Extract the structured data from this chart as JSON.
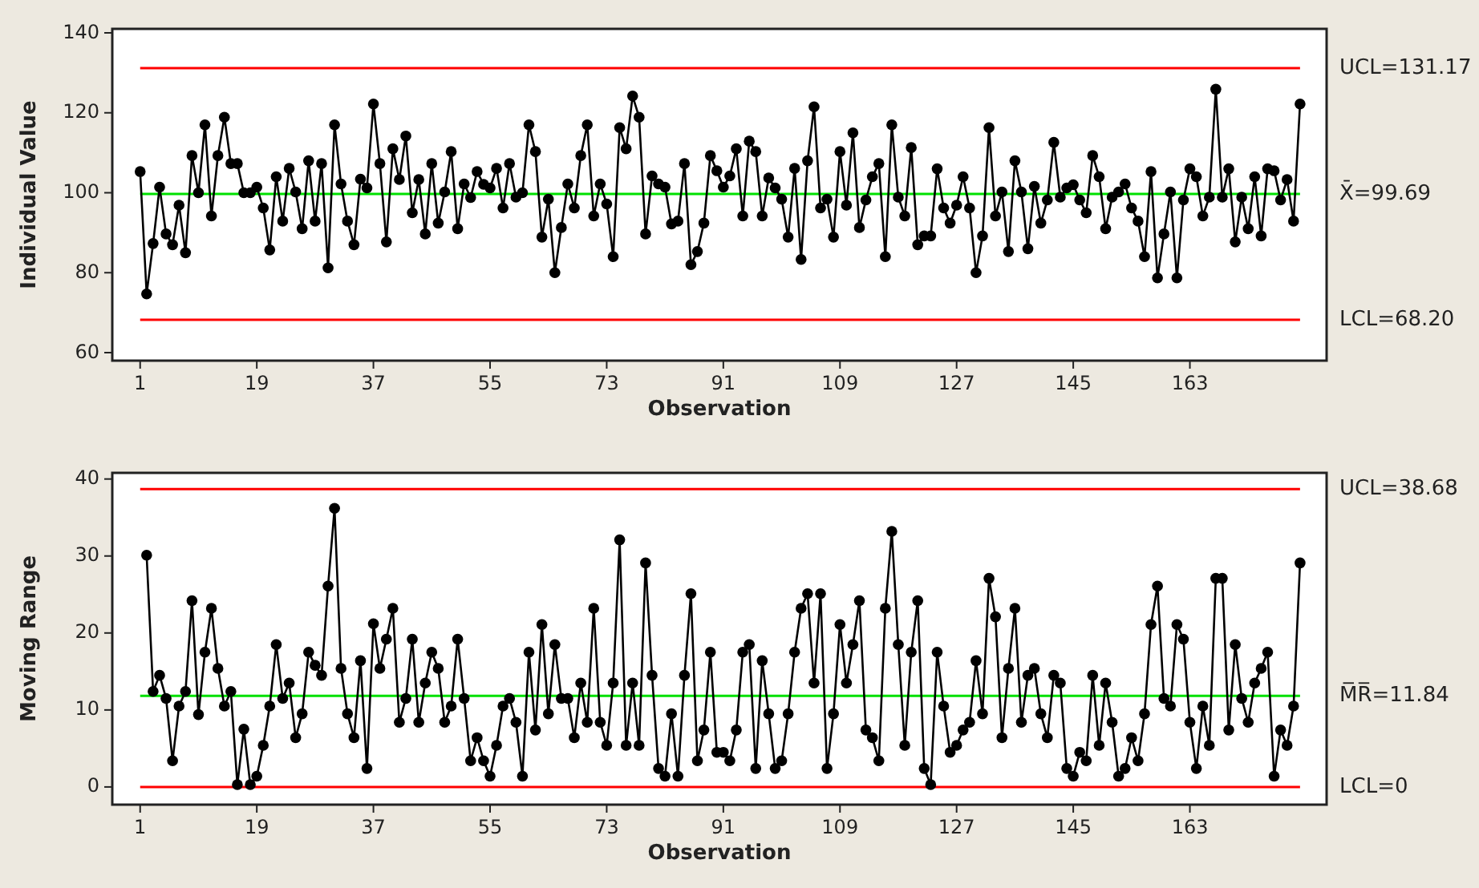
{
  "chart_data": [
    {
      "type": "line",
      "xlabel": "Observation",
      "ylabel": "Individual Value",
      "marker": "circle",
      "xlim": [
        -3.3,
        184.1
      ],
      "xticks": [
        1,
        19,
        37,
        55,
        73,
        91,
        109,
        127,
        145,
        163
      ],
      "ylim": [
        58,
        141
      ],
      "yticks": [
        60,
        80,
        100,
        120,
        140
      ],
      "x": [
        1,
        2,
        3,
        4,
        5,
        6,
        7,
        8,
        9,
        10,
        11,
        12,
        13,
        14,
        15,
        16,
        17,
        18,
        19,
        20,
        21,
        22,
        23,
        24,
        25,
        26,
        27,
        28,
        29,
        30,
        31,
        32,
        33,
        34,
        35,
        36,
        37,
        38,
        39,
        40,
        41,
        42,
        43,
        44,
        45,
        46,
        47,
        48,
        49,
        50,
        51,
        52,
        53,
        54,
        55,
        56,
        57,
        58,
        59,
        60,
        61,
        62,
        63,
        64,
        65,
        66,
        67,
        68,
        69,
        70,
        71,
        72,
        73,
        74,
        75,
        76,
        77,
        78,
        79,
        80,
        81,
        82,
        83,
        84,
        85,
        86,
        87,
        88,
        89,
        90,
        91,
        92,
        93,
        94,
        95,
        96,
        97,
        98,
        99,
        100,
        101,
        102,
        103,
        104,
        105,
        106,
        107,
        108,
        109,
        110,
        111,
        112,
        113,
        114,
        115,
        116,
        117,
        118,
        119,
        120,
        121,
        122,
        123,
        124,
        125,
        126,
        127,
        128,
        129,
        130,
        131,
        132,
        133,
        134,
        135,
        136,
        137,
        138,
        139,
        140,
        141,
        142,
        143,
        144,
        145,
        146,
        147,
        148,
        149,
        150,
        151,
        152,
        153,
        154,
        155,
        156,
        157,
        158,
        159,
        160,
        161,
        162,
        163,
        164,
        165,
        166,
        167,
        168,
        169,
        170,
        171,
        172,
        173,
        174,
        175,
        176,
        177,
        178,
        179,
        180
      ],
      "series": [
        {
          "color": "#000000",
          "values": [
            105.3,
            74.7,
            87.3,
            101.4,
            89.7,
            87.0,
            96.9,
            85.0,
            109.3,
            100.0,
            117.0,
            94.2,
            109.3,
            118.9,
            107.3,
            107.3,
            100.0,
            100.0,
            101.4,
            96.2,
            85.7,
            104.0,
            92.9,
            106.1,
            100.2,
            91.0,
            108.0,
            92.9,
            107.3,
            81.2,
            117.0,
            102.2,
            92.9,
            87.0,
            103.4,
            101.2,
            122.2,
            107.3,
            87.7,
            111.0,
            103.3,
            114.2,
            95.0,
            103.3,
            89.7,
            107.3,
            92.4,
            100.2,
            110.3,
            91.0,
            102.2,
            98.8,
            105.3,
            102.1,
            101.2,
            106.1,
            96.2,
            107.3,
            98.9,
            100.0,
            117.0,
            110.3,
            88.9,
            98.4,
            80.0,
            91.3,
            102.2,
            96.2,
            109.3,
            117.0,
            94.2,
            102.2,
            97.2,
            84.0,
            116.3,
            111.0,
            124.2,
            118.9,
            89.7,
            104.2,
            102.2,
            101.4,
            92.2,
            92.9,
            107.3,
            82.0,
            85.3,
            92.4,
            109.3,
            105.5,
            101.4,
            104.2,
            111.0,
            94.2,
            112.9,
            110.3,
            94.2,
            103.7,
            101.2,
            98.4,
            88.9,
            106.1,
            83.3,
            108.0,
            121.5,
            96.2,
            98.4,
            88.9,
            110.3,
            96.9,
            115.0,
            91.3,
            98.2,
            104.0,
            107.3,
            84.0,
            117.0,
            98.9,
            94.2,
            111.3,
            87.0,
            89.2,
            89.2,
            106.0,
            96.2,
            92.4,
            96.9,
            104.0,
            96.2,
            80.0,
            89.2,
            116.3,
            94.2,
            100.2,
            85.3,
            108.0,
            100.2,
            86.0,
            101.6,
            92.4,
            98.2,
            112.6,
            98.9,
            101.2,
            102.0,
            98.2,
            95.0,
            109.3,
            104.0,
            91.0,
            98.9,
            100.2,
            102.2,
            96.2,
            92.9,
            84.0,
            105.3,
            78.7,
            89.7,
            100.2,
            78.7,
            98.2,
            106.0,
            104.0,
            94.2,
            98.9,
            125.9,
            98.9,
            106.0,
            87.7,
            98.9,
            91.0,
            104.0,
            89.2,
            106.0,
            105.5,
            98.2,
            103.3,
            92.9,
            122.2
          ]
        }
      ],
      "ref_lines": [
        {
          "axis": "y",
          "value": 131.17,
          "label": "UCL=131.17",
          "color": "#ff0000"
        },
        {
          "axis": "y",
          "value": 99.69,
          "label": "X̄=99.69",
          "color": "#00e000"
        },
        {
          "axis": "y",
          "value": 68.2,
          "label": "LCL=68.20",
          "color": "#ff0000"
        }
      ]
    },
    {
      "type": "line",
      "xlabel": "Observation",
      "ylabel": "Moving Range",
      "marker": "circle",
      "xlim": [
        -3.3,
        184.1
      ],
      "xticks": [
        1,
        19,
        37,
        55,
        73,
        91,
        109,
        127,
        145,
        163
      ],
      "ylim": [
        -2.3,
        40.8
      ],
      "yticks": [
        0,
        10,
        20,
        30,
        40
      ],
      "series": [
        {
          "color": "#000000",
          "x": [
            2,
            3,
            4,
            5,
            6,
            7,
            8,
            9,
            10,
            11,
            12,
            13,
            14,
            15,
            16,
            17,
            18,
            19,
            20,
            21,
            22,
            23,
            24,
            25,
            26,
            27,
            28,
            29,
            30,
            31,
            32,
            33,
            34,
            35,
            36,
            37,
            38,
            39,
            40,
            41,
            42,
            43,
            44,
            45,
            46,
            47,
            48,
            49,
            50,
            51,
            52,
            53,
            54,
            55,
            56,
            57,
            58,
            59,
            60,
            61,
            62,
            63,
            64,
            65,
            66,
            67,
            68,
            69,
            70,
            71,
            72,
            73,
            74,
            75,
            76,
            77,
            78,
            79,
            80,
            81,
            82,
            83,
            84,
            85,
            86,
            87,
            88,
            89,
            90,
            91,
            92,
            93,
            94,
            95,
            96,
            97,
            98,
            99,
            100,
            101,
            102,
            103,
            104,
            105,
            106,
            107,
            108,
            109,
            110,
            111,
            112,
            113,
            114,
            115,
            116,
            117,
            118,
            119,
            120,
            121,
            122,
            123,
            124,
            125,
            126,
            127,
            128,
            129,
            130,
            131,
            132,
            133,
            134,
            135,
            136,
            137,
            138,
            139,
            140,
            141,
            142,
            143,
            144,
            145,
            146,
            147,
            148,
            149,
            150,
            151,
            152,
            153,
            154,
            155,
            156,
            157,
            158,
            159,
            160,
            161,
            162,
            163,
            164,
            165,
            166,
            167,
            168,
            169,
            170,
            171,
            172,
            173,
            174,
            175,
            176,
            177,
            178,
            179,
            180
          ],
          "values": [
            30.1,
            12.4,
            14.5,
            11.5,
            3.4,
            10.5,
            12.4,
            24.2,
            9.4,
            17.5,
            23.2,
            15.4,
            10.5,
            12.4,
            0.3,
            7.5,
            0.3,
            1.4,
            5.4,
            10.5,
            18.5,
            11.5,
            13.5,
            6.4,
            9.5,
            17.5,
            15.8,
            14.5,
            26.1,
            36.2,
            15.4,
            9.5,
            6.4,
            16.4,
            2.4,
            21.2,
            15.4,
            19.2,
            23.2,
            8.4,
            11.5,
            19.2,
            8.4,
            13.5,
            17.5,
            15.4,
            8.4,
            10.5,
            19.2,
            11.5,
            3.4,
            6.4,
            3.4,
            1.4,
            5.4,
            10.5,
            11.5,
            8.4,
            1.4,
            17.5,
            7.4,
            21.1,
            9.5,
            18.5,
            11.5,
            11.5,
            6.4,
            13.5,
            8.4,
            23.2,
            8.4,
            5.4,
            13.5,
            32.1,
            5.4,
            13.5,
            5.4,
            29.1,
            14.5,
            2.4,
            1.4,
            9.5,
            1.4,
            14.5,
            25.1,
            3.4,
            7.4,
            17.5,
            4.5,
            4.5,
            3.4,
            7.4,
            17.5,
            18.5,
            2.4,
            16.4,
            9.5,
            2.4,
            3.4,
            9.5,
            17.5,
            23.2,
            25.1,
            13.5,
            25.1,
            2.4,
            9.5,
            21.1,
            13.5,
            18.5,
            24.2,
            7.4,
            6.4,
            3.4,
            23.2,
            33.2,
            18.5,
            5.4,
            17.5,
            24.2,
            2.4,
            0.3,
            17.5,
            10.5,
            4.5,
            5.4,
            7.4,
            8.4,
            16.4,
            9.5,
            27.1,
            22.1,
            6.4,
            15.4,
            23.2,
            8.4,
            14.5,
            15.4,
            9.5,
            6.4,
            14.5,
            13.5,
            2.4,
            1.4,
            4.5,
            3.4,
            14.5,
            5.4,
            13.5,
            8.4,
            1.4,
            2.4,
            6.4,
            3.4,
            9.5,
            21.1,
            26.1,
            11.5,
            10.5,
            21.1,
            19.2,
            8.4,
            2.4,
            10.5,
            5.4,
            27.1,
            27.1,
            7.4,
            18.5,
            11.5,
            8.4,
            13.5,
            15.4,
            17.5,
            1.4,
            7.4,
            5.4,
            10.5,
            29.1
          ]
        }
      ],
      "ref_lines": [
        {
          "axis": "y",
          "value": 38.68,
          "label": "UCL=38.68",
          "color": "#ff0000"
        },
        {
          "axis": "y",
          "value": 11.84,
          "label": "M̅R̅=11.84",
          "color": "#00e000"
        },
        {
          "axis": "y",
          "value": 0,
          "label": "LCL=0",
          "color": "#ff0000"
        }
      ]
    }
  ]
}
